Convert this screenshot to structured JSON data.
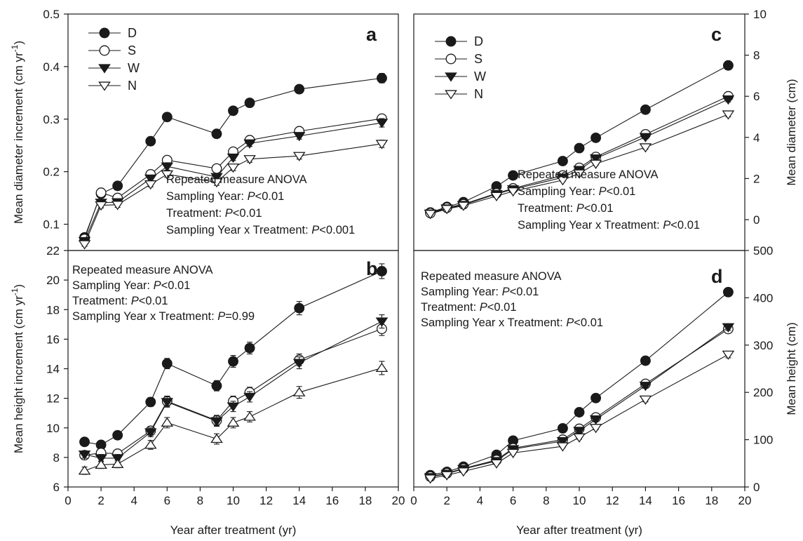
{
  "series_names": [
    "D",
    "S",
    "W",
    "N"
  ],
  "x_axis_title": "Year after treatment (yr)",
  "x_ticks": [
    0,
    2,
    4,
    6,
    8,
    10,
    12,
    14,
    16,
    18,
    20
  ],
  "chart_data": [
    {
      "id": "a",
      "type": "line",
      "panel_letter": "a",
      "ylabel": "Mean diameter increment (cm yr-1)",
      "ylabel_parts": {
        "main": "Mean diameter increment (cm yr",
        "sup": "-1",
        "end": ")"
      },
      "xlim": [
        0,
        20
      ],
      "ylim": [
        0.05,
        0.5
      ],
      "yticks": [
        "0.1",
        "0.2",
        "0.3",
        "0.4",
        "0.5"
      ],
      "x": [
        1,
        2,
        3,
        5,
        6,
        9,
        10,
        11,
        14,
        19
      ],
      "series": [
        {
          "name": "D",
          "marker": "circle-filled",
          "values": [
            0.075,
            0.158,
            0.173,
            0.258,
            0.304,
            0.272,
            0.316,
            0.331,
            0.357,
            0.378
          ],
          "errors": [
            0.005,
            0.005,
            0.005,
            0.005,
            0.008,
            0.007,
            0.007,
            0.007,
            0.007,
            0.009
          ]
        },
        {
          "name": "S",
          "marker": "circle-open",
          "values": [
            0.072,
            0.16,
            0.15,
            0.195,
            0.222,
            0.206,
            0.238,
            0.26,
            0.277,
            0.301
          ],
          "errors": [
            0.004,
            0.005,
            0.005,
            0.005,
            0.007,
            0.007,
            0.006,
            0.006,
            0.006,
            0.008
          ]
        },
        {
          "name": "W",
          "marker": "triangle-down-filled",
          "values": [
            0.068,
            0.141,
            0.142,
            0.187,
            0.21,
            0.19,
            0.227,
            0.254,
            0.268,
            0.293
          ],
          "errors": [
            0.004,
            0.005,
            0.005,
            0.005,
            0.007,
            0.006,
            0.006,
            0.006,
            0.006,
            0.008
          ]
        },
        {
          "name": "N",
          "marker": "triangle-down-open",
          "values": [
            0.062,
            0.136,
            0.137,
            0.176,
            0.195,
            0.18,
            0.208,
            0.224,
            0.23,
            0.253
          ],
          "errors": [
            0.004,
            0.005,
            0.005,
            0.005,
            0.006,
            0.006,
            0.006,
            0.006,
            0.006,
            0.007
          ]
        }
      ],
      "legend": "top-left",
      "annotation": [
        {
          "pre": "Repeated measure ANOVA"
        },
        {
          "pre": "Sampling Year: ",
          "p": "P",
          "post": "<0.01"
        },
        {
          "pre": "Treatment:         ",
          "p": "P",
          "post": "<0.01"
        },
        {
          "pre": "Sampling Year x Treatment: ",
          "p": "P",
          "post": "<0.001"
        }
      ]
    },
    {
      "id": "b",
      "type": "line",
      "panel_letter": "b",
      "ylabel": "Mean height increment (cm yr-1)",
      "ylabel_parts": {
        "main": "Mean height increment (cm yr",
        "sup": "-1",
        "end": ")"
      },
      "xlim": [
        0,
        20
      ],
      "ylim": [
        6,
        22
      ],
      "yticks": [
        "6",
        "8",
        "10",
        "12",
        "14",
        "16",
        "18",
        "20",
        "22"
      ],
      "x": [
        1,
        2,
        3,
        5,
        6,
        9,
        10,
        11,
        14,
        19
      ],
      "series": [
        {
          "name": "D",
          "marker": "circle-filled",
          "values": [
            9.05,
            8.85,
            9.5,
            11.75,
            14.35,
            12.85,
            14.5,
            15.4,
            18.1,
            20.6
          ],
          "errors": [
            0.25,
            0.25,
            0.25,
            0.3,
            0.35,
            0.35,
            0.4,
            0.4,
            0.45,
            0.5
          ]
        },
        {
          "name": "S",
          "marker": "circle-open",
          "values": [
            8.15,
            8.3,
            8.25,
            9.8,
            11.8,
            10.5,
            11.8,
            12.4,
            14.6,
            16.7
          ],
          "errors": [
            0.25,
            0.25,
            0.25,
            0.3,
            0.35,
            0.35,
            0.35,
            0.35,
            0.4,
            0.45
          ]
        },
        {
          "name": "W",
          "marker": "triangle-down-filled",
          "values": [
            8.2,
            7.95,
            7.95,
            9.7,
            11.75,
            10.45,
            11.45,
            12.1,
            14.4,
            17.2
          ],
          "errors": [
            0.25,
            0.25,
            0.25,
            0.3,
            0.35,
            0.35,
            0.35,
            0.35,
            0.4,
            0.45
          ]
        },
        {
          "name": "N",
          "marker": "triangle-up-open",
          "values": [
            7.1,
            7.5,
            7.55,
            8.85,
            10.35,
            9.25,
            10.35,
            10.75,
            12.4,
            14.05
          ],
          "errors": [
            0.25,
            0.25,
            0.25,
            0.3,
            0.35,
            0.35,
            0.35,
            0.35,
            0.4,
            0.45
          ]
        }
      ],
      "annotation": [
        {
          "pre": "Repeated measure ANOVA"
        },
        {
          "pre": "Sampling Year: ",
          "p": "P",
          "post": "<0.01"
        },
        {
          "pre": "Treatment:         ",
          "p": "P",
          "post": "<0.01"
        },
        {
          "pre": "Sampling Year x Treatment: ",
          "p": "P",
          "post": "=0.99"
        }
      ]
    },
    {
      "id": "c",
      "type": "line",
      "panel_letter": "c",
      "ylabel": "Mean diameter (cm)",
      "ylabel_parts": {
        "main": "Mean diameter (cm)",
        "sup": "",
        "end": ""
      },
      "xlim": [
        0,
        20
      ],
      "ylim": [
        -1.5,
        10
      ],
      "yticks": [
        "0",
        "2",
        "4",
        "6",
        "8",
        "10"
      ],
      "x": [
        1,
        2,
        3,
        5,
        6,
        9,
        10,
        11,
        14,
        19
      ],
      "series": [
        {
          "name": "D",
          "marker": "circle-filled",
          "values": [
            0.35,
            0.62,
            0.85,
            1.62,
            2.15,
            2.85,
            3.48,
            3.98,
            5.35,
            7.5
          ],
          "errors": [
            0.05,
            0.05,
            0.05,
            0.06,
            0.07,
            0.07,
            0.08,
            0.08,
            0.1,
            0.12
          ]
        },
        {
          "name": "S",
          "marker": "circle-open",
          "values": [
            0.32,
            0.58,
            0.75,
            1.28,
            1.52,
            2.15,
            2.52,
            3.05,
            4.15,
            6.0
          ],
          "errors": [
            0.05,
            0.05,
            0.05,
            0.06,
            0.07,
            0.07,
            0.08,
            0.08,
            0.1,
            0.12
          ]
        },
        {
          "name": "W",
          "marker": "triangle-down-filled",
          "values": [
            0.3,
            0.55,
            0.72,
            1.25,
            1.48,
            2.05,
            2.42,
            2.98,
            4.02,
            5.85
          ],
          "errors": [
            0.05,
            0.05,
            0.05,
            0.06,
            0.07,
            0.07,
            0.08,
            0.08,
            0.1,
            0.12
          ]
        },
        {
          "name": "N",
          "marker": "triangle-down-open",
          "values": [
            0.28,
            0.52,
            0.68,
            1.15,
            1.38,
            1.92,
            2.25,
            2.72,
            3.52,
            5.12
          ],
          "errors": [
            0.05,
            0.05,
            0.05,
            0.06,
            0.07,
            0.07,
            0.08,
            0.08,
            0.1,
            0.12
          ]
        }
      ],
      "legend": "top-left",
      "annotation": [
        {
          "pre": "Repeated measure ANOVA"
        },
        {
          "pre": "Sampling Year: ",
          "p": "P",
          "post": "<0.01"
        },
        {
          "pre": "Treatment:         ",
          "p": "P",
          "post": "<0.01"
        },
        {
          "pre": "Sampling Year x Treatment: ",
          "p": "P",
          "post": "<0.01"
        }
      ]
    },
    {
      "id": "d",
      "type": "line",
      "panel_letter": "d",
      "ylabel": "Mean height (cm)",
      "ylabel_parts": {
        "main": "Mean height (cm)",
        "sup": "",
        "end": ""
      },
      "xlim": [
        0,
        20
      ],
      "ylim": [
        0,
        500
      ],
      "yticks": [
        "0",
        "100",
        "200",
        "300",
        "400",
        "500"
      ],
      "x": [
        1,
        2,
        3,
        5,
        6,
        9,
        10,
        11,
        14,
        19
      ],
      "series": [
        {
          "name": "D",
          "marker": "circle-filled",
          "values": [
            25,
            32,
            43,
            68,
            98,
            124,
            158,
            188,
            267,
            412
          ],
          "errors": [
            2,
            2,
            2,
            3,
            3,
            3,
            4,
            4,
            5,
            8
          ]
        },
        {
          "name": "S",
          "marker": "circle-open",
          "values": [
            22,
            29,
            39,
            57,
            82,
            100,
            123,
            147,
            218,
            334
          ],
          "errors": [
            2,
            2,
            2,
            3,
            3,
            3,
            4,
            4,
            5,
            7
          ]
        },
        {
          "name": "W",
          "marker": "triangle-down-filled",
          "values": [
            21,
            28,
            38,
            55,
            80,
            97,
            119,
            143,
            214,
            338
          ],
          "errors": [
            2,
            2,
            2,
            3,
            3,
            3,
            4,
            4,
            5,
            7
          ]
        },
        {
          "name": "N",
          "marker": "triangle-down-open",
          "values": [
            18,
            25,
            33,
            50,
            72,
            86,
            105,
            125,
            185,
            280
          ],
          "errors": [
            2,
            2,
            2,
            3,
            3,
            3,
            4,
            4,
            5,
            7
          ]
        }
      ],
      "annotation": [
        {
          "pre": "Repeated measure ANOVA"
        },
        {
          "pre": "Sampling Year: ",
          "p": "P",
          "post": "<0.01"
        },
        {
          "pre": "Treatment:         ",
          "p": "P",
          "post": "<0.01"
        },
        {
          "pre": "Sampling Year x Treatment: ",
          "p": "P",
          "post": "<0.01"
        }
      ]
    }
  ]
}
